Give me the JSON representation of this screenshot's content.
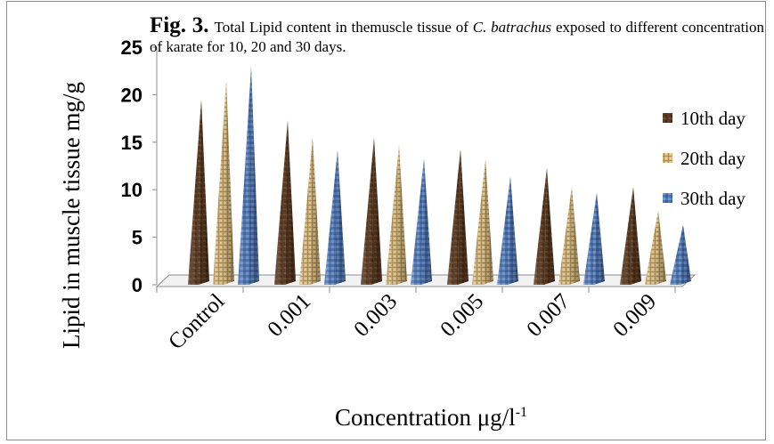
{
  "caption": {
    "fig_label": "Fig. 3.",
    "text_before": "Total Lipid content in themuscle tissue of ",
    "species": "C. batrachus",
    "text_after": " exposed to different concentration of karate for 10, 20 and 30 days."
  },
  "chart_data": {
    "type": "bar",
    "style": "3d-pyramid",
    "categories": [
      "Control",
      "0.001",
      "0.003",
      "0.005",
      "0.007",
      "0.009"
    ],
    "series": [
      {
        "name": "10th day",
        "values": [
          19.5,
          17.3,
          15.5,
          14.3,
          12.3,
          10.3
        ],
        "color": "#5a3a22"
      },
      {
        "name": "20th day",
        "values": [
          21.5,
          15.5,
          14.7,
          13.2,
          10.3,
          7.8
        ],
        "color": "#c9a86a"
      },
      {
        "name": "30th day",
        "values": [
          23,
          14.2,
          13.3,
          11.4,
          9.7,
          6.3
        ],
        "color": "#4f78b8"
      }
    ],
    "ylabel": "Lipid in muscle tissue mg/g",
    "xlabel": "Concentration  μg/l",
    "xlabel_superscript": "-1",
    "ylim": [
      0,
      25
    ],
    "yticks": [
      "0",
      "5",
      "10",
      "15",
      "20",
      "25"
    ],
    "legend_position": "right",
    "grid": false
  }
}
